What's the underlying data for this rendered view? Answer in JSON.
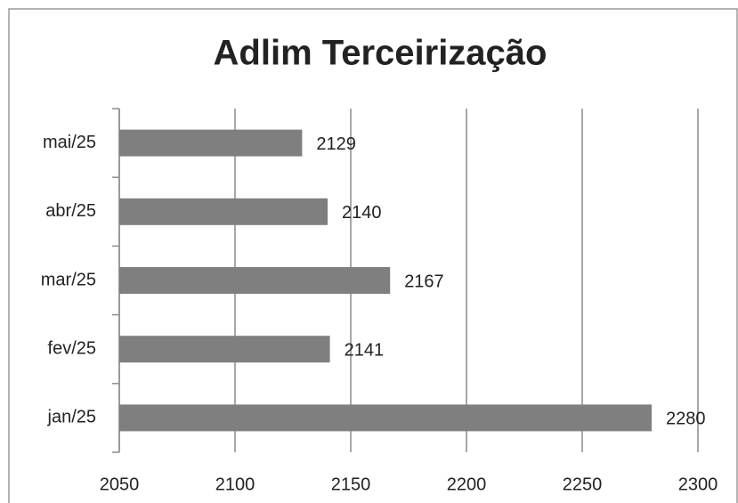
{
  "chart_data": {
    "type": "bar",
    "orientation": "horizontal",
    "title": "Adlim Terceirização",
    "categories": [
      "jan/25",
      "fev/25",
      "mar/25",
      "abr/25",
      "mai/25"
    ],
    "values": [
      2280,
      2141,
      2167,
      2140,
      2129
    ],
    "color": "#7f7f7f",
    "xlim": [
      2050,
      2300
    ],
    "xticks": [
      2050,
      2100,
      2150,
      2200,
      2250,
      2300
    ],
    "grid": true
  }
}
